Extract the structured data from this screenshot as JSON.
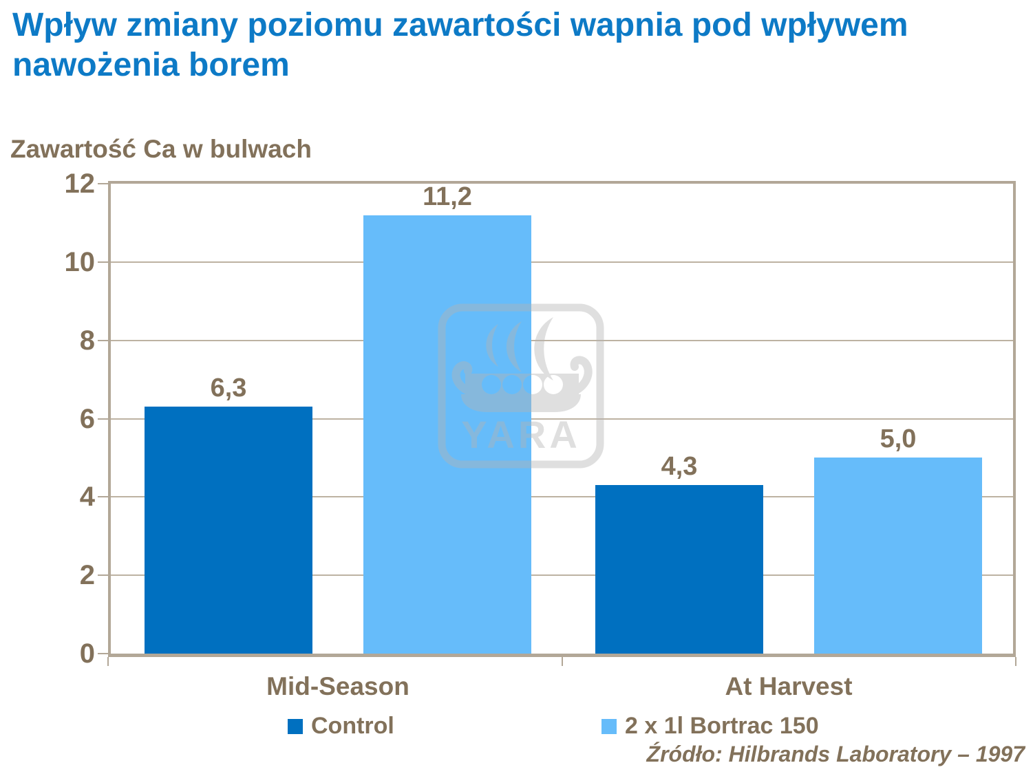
{
  "theme": {
    "title-blue": "#0d7ac6",
    "brown": "#82715a",
    "grid-tan": "#bdb2a2",
    "border-tan": "#b2a797",
    "bg": "#ffffff"
  },
  "watermark": {
    "text": "YARA"
  },
  "chart_data": {
    "type": "bar",
    "title": "Wpływ zmiany poziomu zawartości wapnia pod wpływem nawożenia borem",
    "axis_title": "Zawartość Ca w bulwach",
    "categories": [
      "Mid-Season",
      "At Harvest"
    ],
    "series": [
      {
        "name": "Control",
        "color": "#0070C0",
        "values": [
          6.3,
          4.3
        ],
        "labels": [
          "6,3",
          "4,3"
        ]
      },
      {
        "name": "2 x 1l Bortrac 150",
        "color": "#66BCFA",
        "values": [
          11.2,
          5.0
        ],
        "labels": [
          "11,2",
          "5,0"
        ]
      }
    ],
    "ylim": [
      0,
      12
    ],
    "yticks": [
      0,
      2,
      4,
      6,
      8,
      10,
      12
    ],
    "grid": true,
    "legend_position": "bottom",
    "source": "Źródło: Hilbrands Laboratory – 1997"
  }
}
